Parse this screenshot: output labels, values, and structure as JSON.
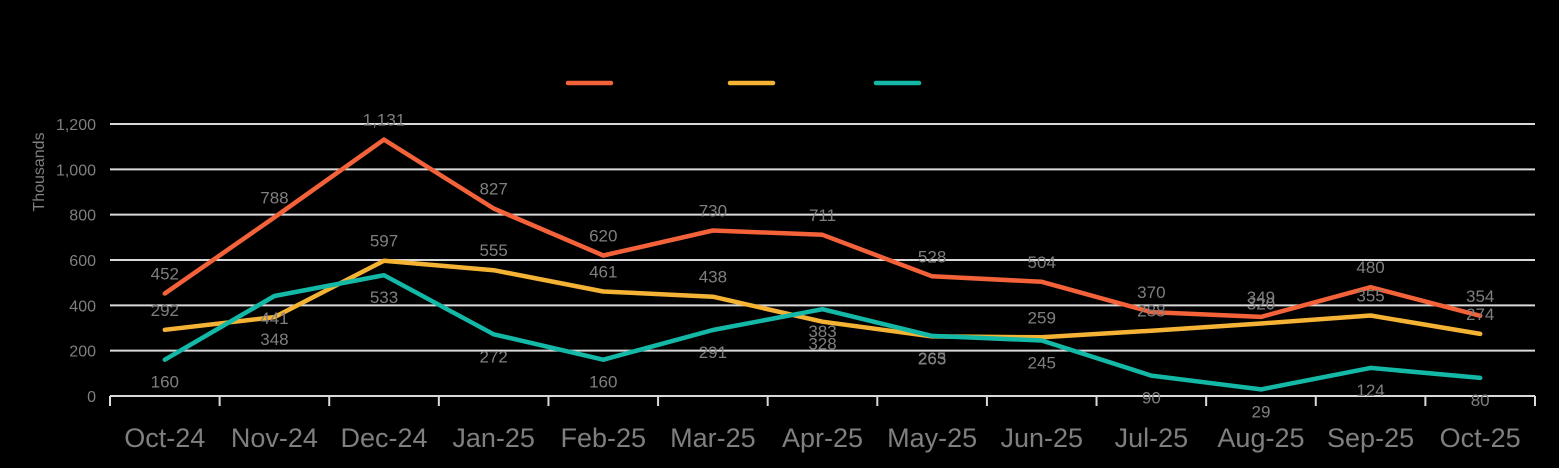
{
  "chart_data": {
    "type": "line",
    "title": "",
    "xlabel": "",
    "ylabel": "Thousands",
    "ylim": [
      0,
      1200
    ],
    "yticks": [
      0,
      200,
      400,
      600,
      800,
      1000,
      1200
    ],
    "ytick_labels": [
      "0",
      "200",
      "400",
      "600",
      "800",
      "1,000",
      "1,200"
    ],
    "categories": [
      "Oct-24",
      "Nov-24",
      "Dec-24",
      "Jan-25",
      "Feb-25",
      "Mar-25",
      "Apr-25",
      "May-25",
      "Jun-25",
      "Jul-25",
      "Aug-25",
      "Sep-25",
      "Oct-25"
    ],
    "grid": true,
    "legend": "top-center",
    "series": [
      {
        "color": "#f4623a",
        "values": [
          452,
          788,
          1131,
          827,
          620,
          730,
          711,
          528,
          504,
          370,
          349,
          480,
          354
        ],
        "labels": [
          "452",
          "788",
          "1,131",
          "827",
          "620",
          "730",
          "711",
          "528",
          "504",
          "370",
          "349",
          "480",
          "354"
        ]
      },
      {
        "color": "#f5b335",
        "values": [
          292,
          348,
          597,
          555,
          461,
          438,
          328,
          263,
          259,
          288,
          320,
          355,
          274
        ],
        "labels": [
          "292",
          "348",
          "597",
          "555",
          "461",
          "438",
          "328",
          "263",
          "259",
          "288",
          "320",
          "355",
          "274"
        ]
      },
      {
        "color": "#14b8a6",
        "values": [
          160,
          441,
          533,
          272,
          160,
          291,
          383,
          265,
          245,
          90,
          29,
          124,
          80
        ],
        "labels": [
          "160",
          "441",
          "533",
          "272",
          "160",
          "291",
          "383",
          "265",
          "245",
          "90",
          "29",
          "124",
          "80"
        ]
      }
    ]
  }
}
